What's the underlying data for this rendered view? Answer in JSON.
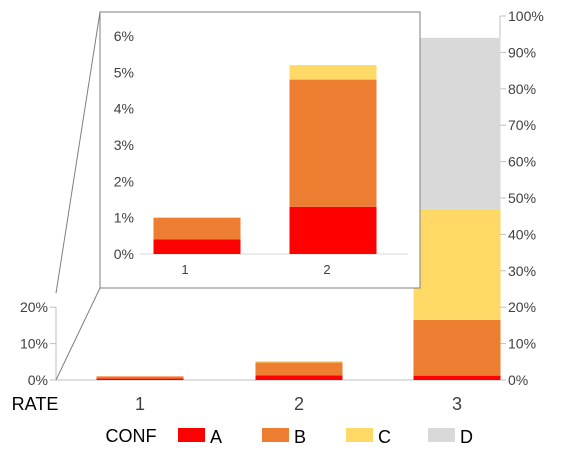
{
  "chart_data": [
    {
      "type": "bar",
      "stacked": true,
      "categories": [
        "1",
        "2",
        "3"
      ],
      "xlabel": "RATE",
      "ylim": [
        0,
        1
      ],
      "left_axis_ticks": [
        "0%",
        "10%",
        "20%"
      ],
      "right_axis_ticks": [
        "0%",
        "10%",
        "20%",
        "30%",
        "40%",
        "50%",
        "60%",
        "70%",
        "80%",
        "90%",
        "100%"
      ],
      "grid": false,
      "legend_title": "CONF",
      "legend_position": "bottom",
      "series": [
        {
          "name": "A",
          "color": "#ff0000",
          "values": [
            0.004,
            0.013,
            0.012
          ]
        },
        {
          "name": "B",
          "color": "#ed7d31",
          "values": [
            0.006,
            0.035,
            0.153
          ]
        },
        {
          "name": "C",
          "color": "#ffd966",
          "values": [
            0.0,
            0.004,
            0.305
          ]
        },
        {
          "name": "D",
          "color": "#d9d9d9",
          "values": [
            0.0,
            0.0,
            0.47
          ]
        }
      ]
    },
    {
      "type": "bar",
      "stacked": true,
      "role": "inset",
      "categories": [
        "1",
        "2"
      ],
      "ylim": [
        0,
        0.06
      ],
      "y_ticks": [
        "0%",
        "1%",
        "2%",
        "3%",
        "4%",
        "5%",
        "6%"
      ],
      "grid": false,
      "series": [
        {
          "name": "A",
          "color": "#ff0000",
          "values": [
            0.004,
            0.013
          ]
        },
        {
          "name": "B",
          "color": "#ed7d31",
          "values": [
            0.006,
            0.035
          ]
        },
        {
          "name": "C",
          "color": "#ffd966",
          "values": [
            0.0,
            0.004
          ]
        },
        {
          "name": "D",
          "color": "#d9d9d9",
          "values": [
            0.0,
            0.0
          ]
        }
      ]
    }
  ]
}
